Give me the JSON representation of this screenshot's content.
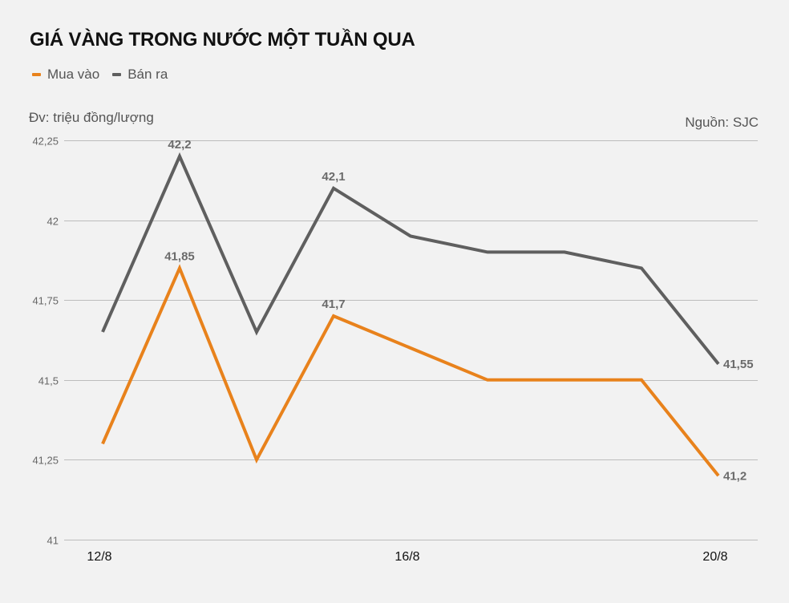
{
  "header": {
    "title": "GIÁ VÀNG TRONG NƯỚC MỘT TUẦN QUA",
    "unit": "Đv: triệu đồng/lượng",
    "source": "Nguồn: SJC"
  },
  "legend": [
    {
      "label": "Mua vào",
      "color": "#e8821c"
    },
    {
      "label": "Bán ra",
      "color": "#5f5f5f"
    }
  ],
  "chart_data": {
    "type": "line",
    "title": "GIÁ VÀNG TRONG NƯỚC MỘT TUẦN QUA",
    "subtitle": "Đv: triệu đồng/lượng",
    "source": "Nguồn: SJC",
    "xlabel": "",
    "ylabel": "triệu đồng/lượng",
    "ylim": [
      41,
      42.25
    ],
    "yticks": [
      41,
      41.25,
      41.5,
      41.75,
      42,
      42.25
    ],
    "ytick_labels": [
      "41",
      "41,25",
      "41,5",
      "41,75",
      "42",
      "42,25"
    ],
    "x": [
      "12/8",
      "13/8",
      "14/8",
      "15/8",
      "16/8",
      "17/8",
      "18/8",
      "19/8",
      "20/8"
    ],
    "xtick_labels_shown": [
      "12/8",
      "16/8",
      "20/8"
    ],
    "grid": true,
    "legend_position": "top-left",
    "series": [
      {
        "name": "Mua vào",
        "color": "#e8821c",
        "values": [
          41.3,
          41.85,
          41.25,
          41.7,
          41.6,
          41.5,
          41.5,
          41.5,
          41.2
        ]
      },
      {
        "name": "Bán ra",
        "color": "#5f5f5f",
        "values": [
          41.65,
          42.2,
          41.65,
          42.1,
          41.95,
          41.9,
          41.9,
          41.85,
          41.55
        ]
      }
    ],
    "annotations": [
      {
        "series": "Bán ra",
        "index": 1,
        "text": "42,2"
      },
      {
        "series": "Bán ra",
        "index": 3,
        "text": "42,1"
      },
      {
        "series": "Bán ra",
        "index": 8,
        "text": "41,55"
      },
      {
        "series": "Mua vào",
        "index": 1,
        "text": "41,85"
      },
      {
        "series": "Mua vào",
        "index": 3,
        "text": "41,7"
      },
      {
        "series": "Mua vào",
        "index": 8,
        "text": "41,2"
      }
    ]
  }
}
